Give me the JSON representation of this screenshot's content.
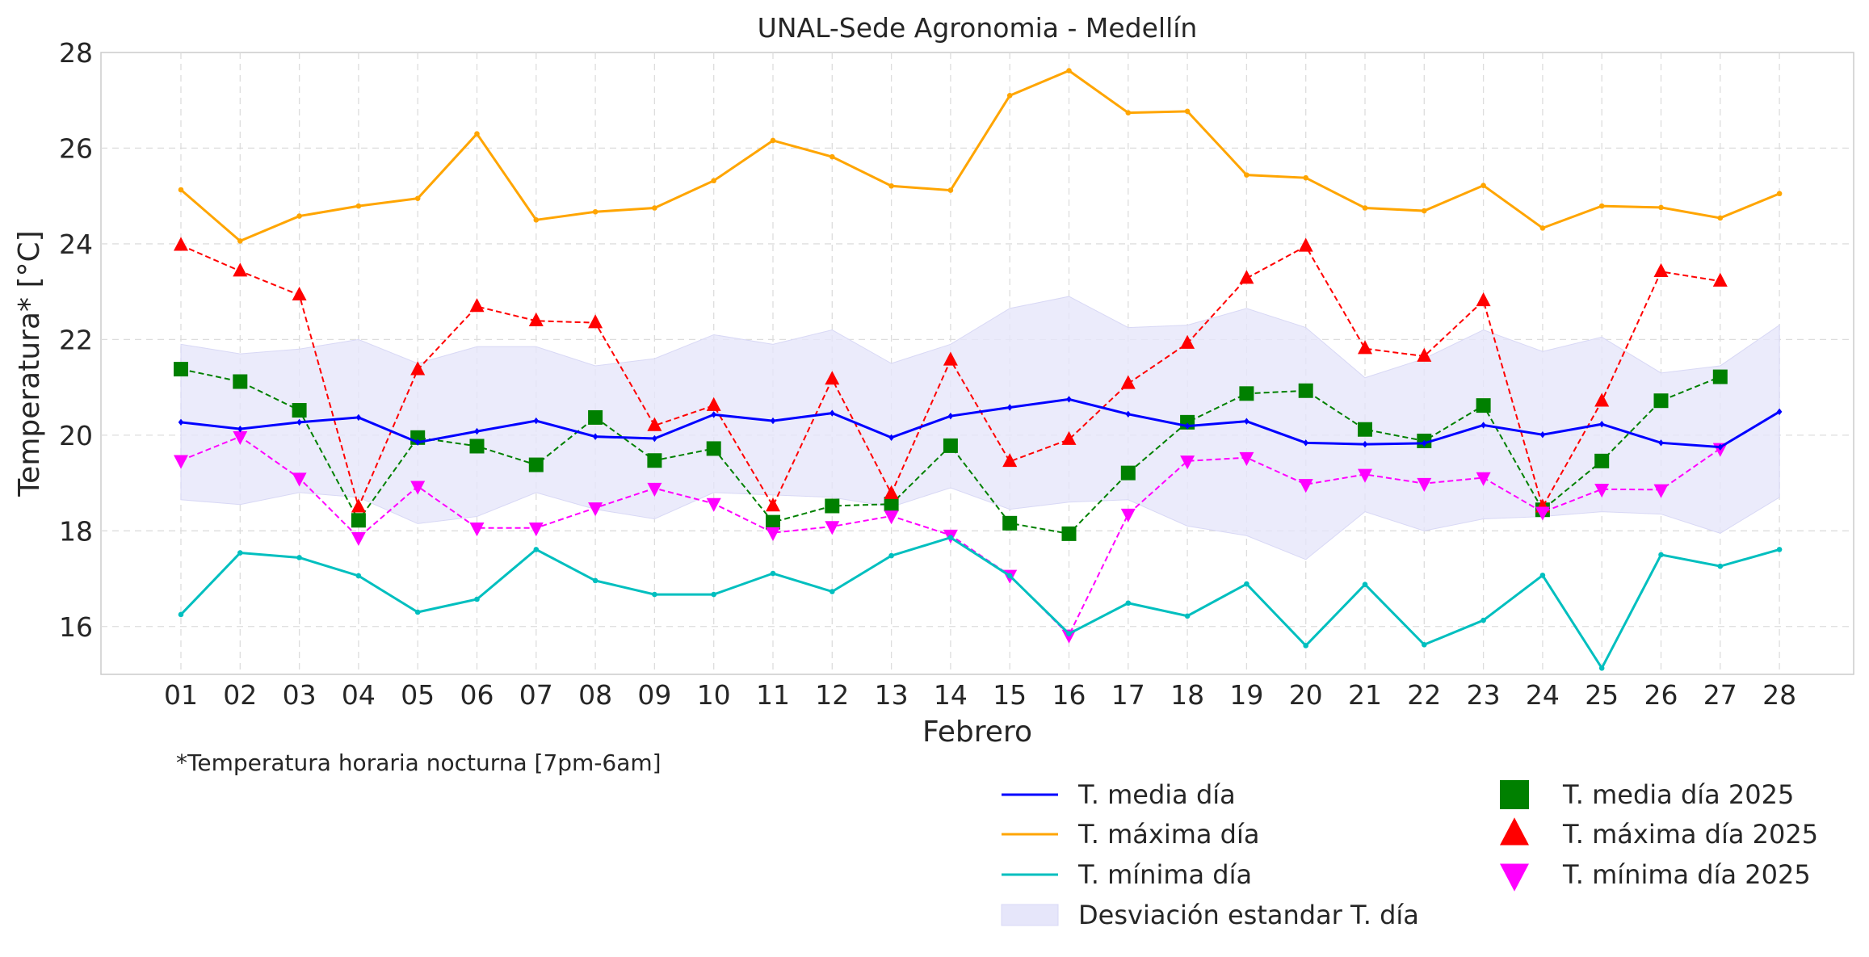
{
  "chart_data": {
    "type": "line",
    "title": "UNAL-Sede Agronomia - Medellín",
    "xlabel": "Febrero",
    "ylabel": "Temperatura* [°C]",
    "footnote": "*Temperatura horaria nocturna [7pm-6am]",
    "categories": [
      "01",
      "02",
      "03",
      "04",
      "05",
      "06",
      "07",
      "08",
      "09",
      "10",
      "11",
      "12",
      "13",
      "14",
      "15",
      "16",
      "17",
      "18",
      "19",
      "20",
      "21",
      "22",
      "23",
      "24",
      "25",
      "26",
      "27",
      "28"
    ],
    "ylim": [
      15.0,
      28.0
    ],
    "yticks": [
      "16",
      "18",
      "20",
      "22",
      "24",
      "26",
      "28"
    ],
    "grid": true,
    "legend_position": "bottom-right",
    "band": {
      "name": "Desviación estandar T. día",
      "color": "#e6e6fa",
      "upper": [
        21.9,
        21.7,
        21.8,
        22.0,
        21.5,
        21.85,
        21.85,
        21.45,
        21.6,
        22.1,
        21.9,
        22.2,
        21.5,
        21.9,
        22.65,
        22.9,
        22.25,
        22.3,
        22.65,
        22.25,
        21.2,
        21.6,
        22.2,
        21.75,
        22.05,
        21.3,
        21.45,
        22.3
      ],
      "lower": [
        18.65,
        18.55,
        18.8,
        18.7,
        18.15,
        18.3,
        18.8,
        18.45,
        18.25,
        18.8,
        18.75,
        18.7,
        18.5,
        18.9,
        18.45,
        18.6,
        18.65,
        18.1,
        17.9,
        17.4,
        18.4,
        18.0,
        18.25,
        18.3,
        18.4,
        18.35,
        17.95,
        18.7
      ]
    },
    "series": [
      {
        "name": "T. media día",
        "color": "#0000ff",
        "style": "solid",
        "marker": "diamond",
        "values": [
          20.27,
          20.13,
          20.27,
          20.37,
          19.85,
          20.08,
          20.3,
          19.97,
          19.93,
          20.43,
          20.3,
          20.46,
          19.95,
          20.4,
          20.58,
          20.75,
          20.44,
          20.19,
          20.29,
          19.84,
          19.81,
          19.83,
          20.21,
          20.01,
          20.23,
          19.84,
          19.75,
          20.49
        ]
      },
      {
        "name": "T. máxima día",
        "color": "#ffa500",
        "style": "solid",
        "marker": "circle",
        "values": [
          25.13,
          24.06,
          24.58,
          24.79,
          24.95,
          26.3,
          24.5,
          24.67,
          24.75,
          25.32,
          26.16,
          25.82,
          25.21,
          25.12,
          27.1,
          27.62,
          26.74,
          26.77,
          25.44,
          25.38,
          24.75,
          24.69,
          25.22,
          24.33,
          24.79,
          24.76,
          24.54,
          25.05
        ]
      },
      {
        "name": "T. mínima día",
        "color": "#00bfbf",
        "style": "solid",
        "marker": "circle",
        "values": [
          16.25,
          17.54,
          17.44,
          17.06,
          16.3,
          16.57,
          17.61,
          16.96,
          16.67,
          16.67,
          17.11,
          16.73,
          17.48,
          17.86,
          17.06,
          15.85,
          16.49,
          16.22,
          16.89,
          15.6,
          16.88,
          15.62,
          16.13,
          17.07,
          15.13,
          17.5,
          17.26,
          17.61
        ]
      },
      {
        "name": "T. media día 2025",
        "color": "#008000",
        "style": "dashed",
        "marker": "square",
        "values": [
          21.38,
          21.12,
          20.52,
          18.22,
          19.95,
          19.77,
          19.38,
          20.37,
          19.47,
          19.72,
          18.18,
          18.52,
          18.56,
          19.78,
          18.16,
          17.94,
          19.21,
          20.27,
          20.87,
          20.93,
          20.12,
          19.88,
          20.62,
          18.44,
          19.46,
          20.72,
          21.22,
          null
        ]
      },
      {
        "name": "T. máxima día 2025",
        "color": "#ff0000",
        "style": "dashed",
        "marker": "triangle-up",
        "values": [
          23.97,
          23.43,
          22.93,
          18.5,
          21.37,
          22.69,
          22.39,
          22.35,
          20.2,
          20.62,
          18.52,
          21.17,
          18.78,
          21.57,
          19.45,
          19.91,
          21.08,
          21.92,
          23.28,
          23.95,
          21.81,
          21.65,
          22.81,
          18.5,
          20.71,
          23.42,
          23.22,
          null
        ]
      },
      {
        "name": "T. mínima día 2025",
        "color": "#ff00ff",
        "style": "dashed",
        "marker": "triangle-down",
        "values": [
          19.47,
          19.97,
          19.1,
          17.86,
          18.93,
          18.06,
          18.06,
          18.48,
          18.89,
          18.57,
          17.96,
          18.09,
          18.31,
          17.91,
          17.07,
          15.82,
          18.35,
          19.46,
          19.53,
          18.97,
          19.18,
          18.99,
          19.11,
          18.39,
          18.87,
          18.86,
          19.72,
          null
        ]
      }
    ]
  }
}
